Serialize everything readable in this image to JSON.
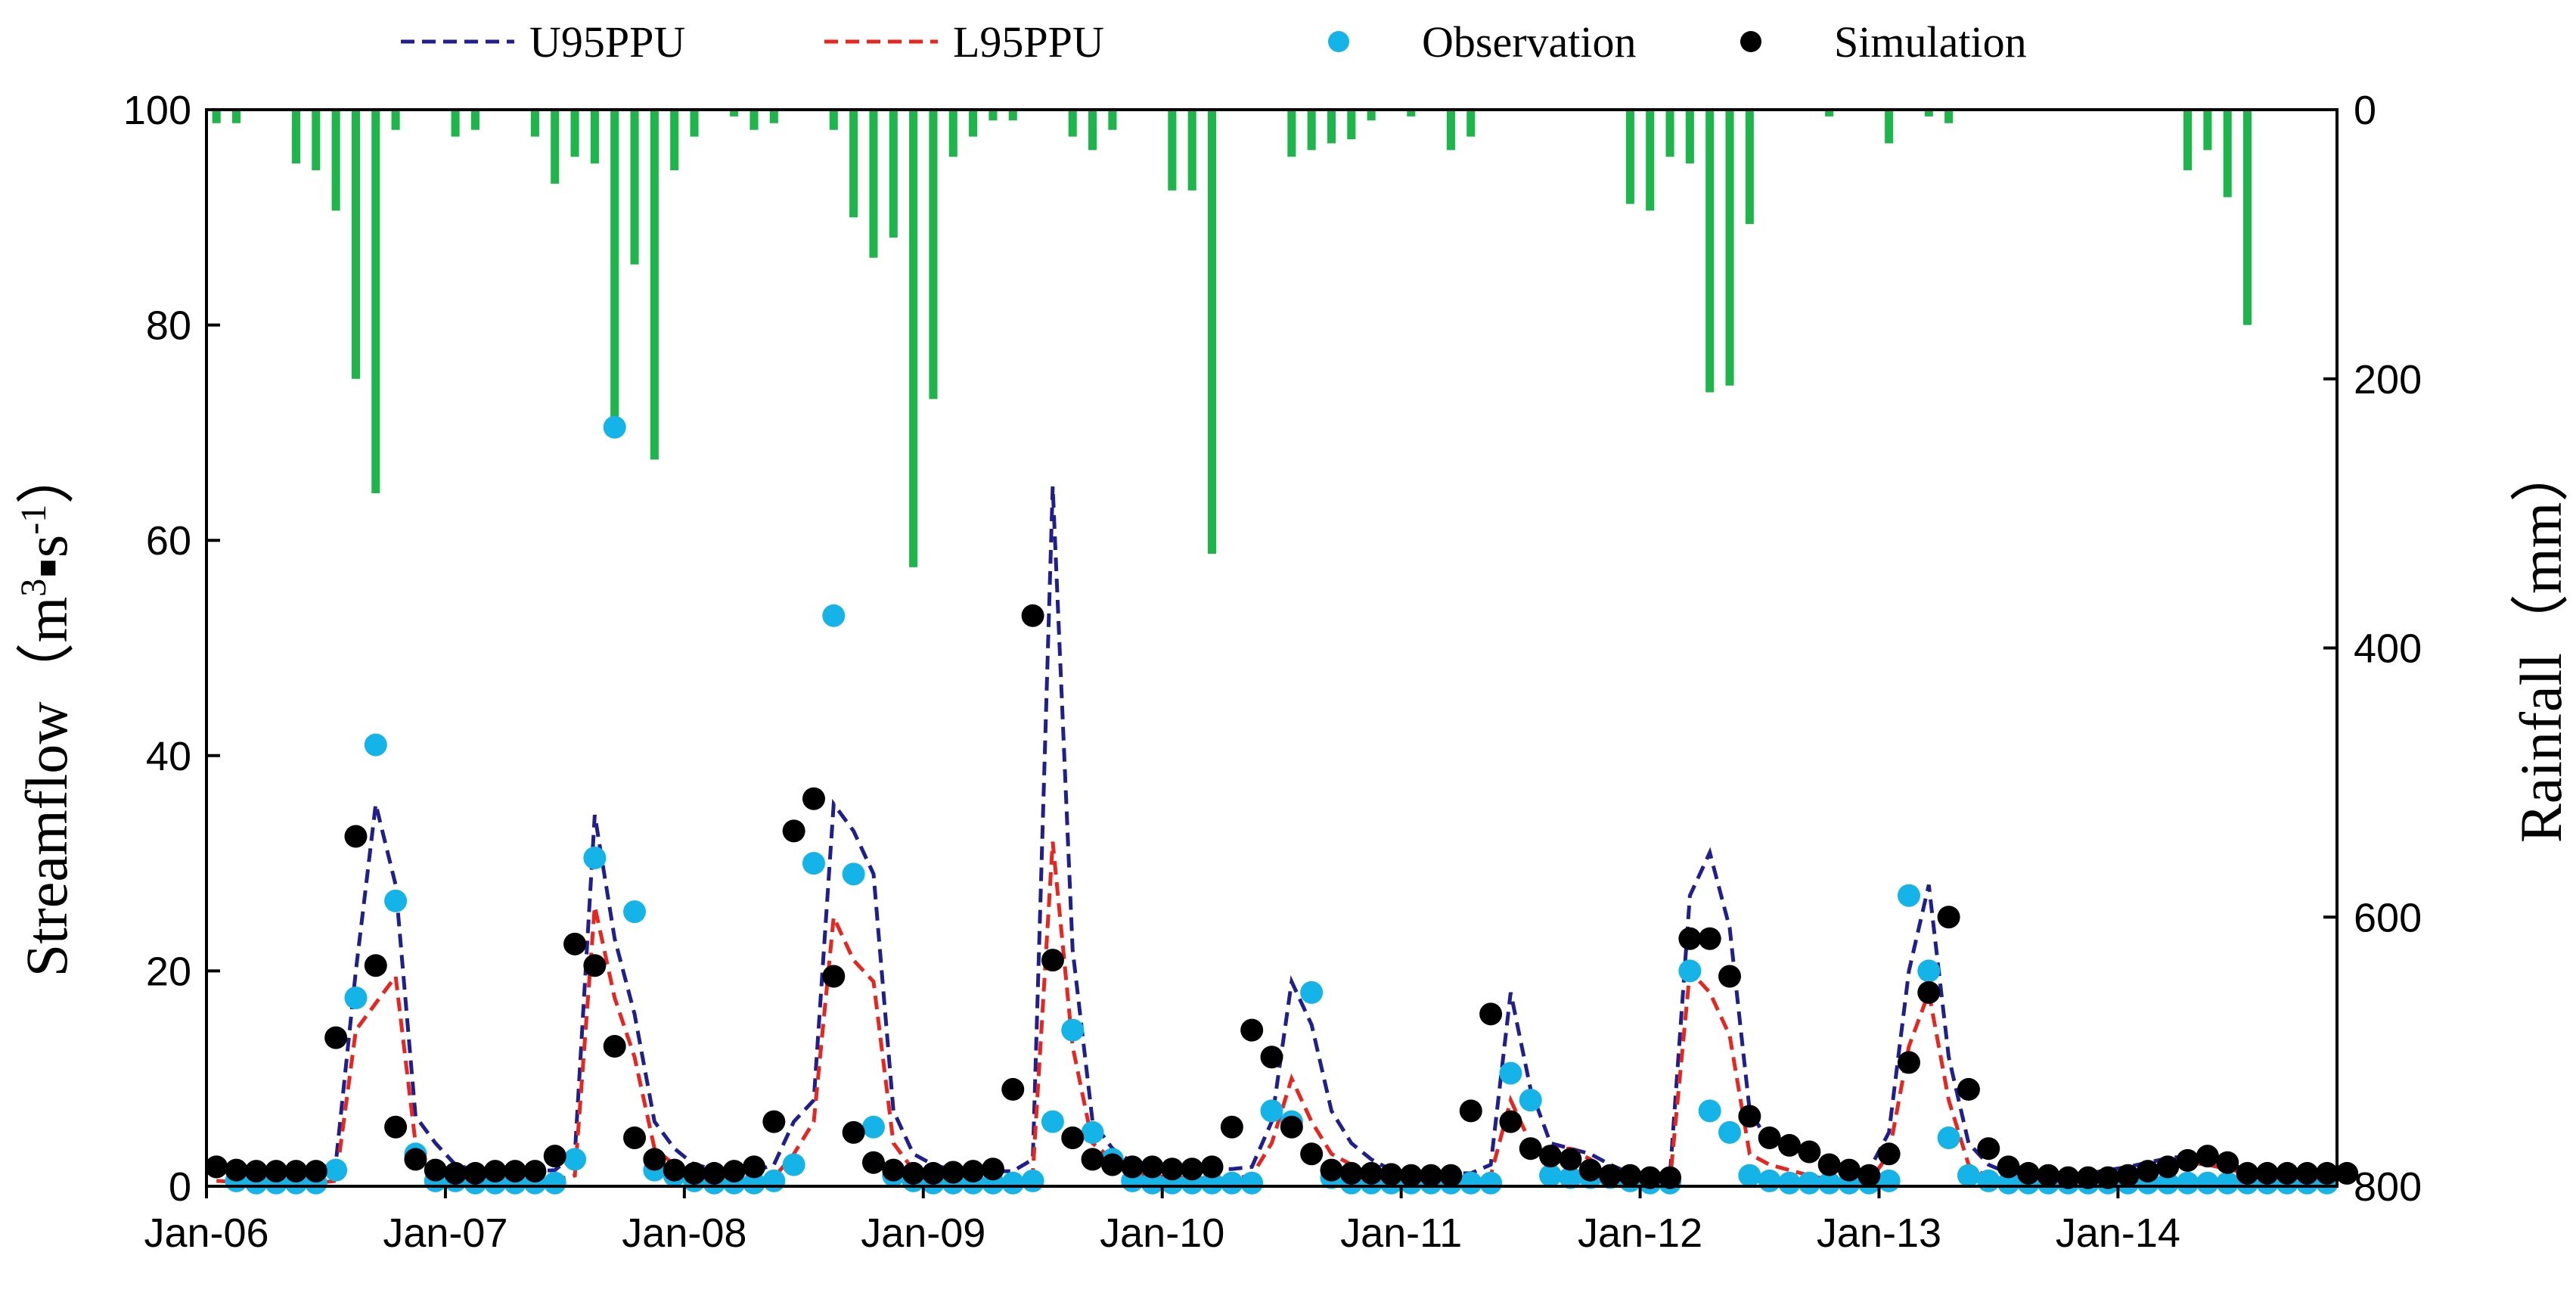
{
  "chart_data": {
    "type": "line",
    "title": "",
    "x_tick_labels": [
      "Jan-06",
      "Jan-07",
      "Jan-08",
      "Jan-09",
      "Jan-10",
      "Jan-11",
      "Jan-12",
      "Jan-13",
      "Jan-14"
    ],
    "x_range_months": [
      0,
      107
    ],
    "y_left": {
      "label_prefix": "Streamflow（m",
      "label_sup1": "3",
      "label_mid": "▪s",
      "label_sup2": "-1",
      "label_suffix": "）",
      "ylim": [
        0,
        100
      ],
      "ticks": [
        0,
        20,
        40,
        60,
        80,
        100
      ]
    },
    "y_right": {
      "label": "Rainfall（mm）",
      "ylim": [
        800,
        0
      ],
      "ticks": [
        0,
        200,
        400,
        600,
        800
      ]
    },
    "legend": [
      {
        "name": "U95PPU",
        "style": "dashed-line",
        "color": "#1f1f8f"
      },
      {
        "name": "L95PPU",
        "style": "dashed-line",
        "color": "#e8251e"
      },
      {
        "name": "Observation",
        "style": "marker",
        "color": "#14b4e8"
      },
      {
        "name": "Simulation",
        "style": "marker",
        "color": "#000000"
      }
    ],
    "colors": {
      "rainfall": "#1db64b",
      "u95": "#1f1f8f",
      "l95": "#e8251e",
      "observation": "#14b4e8",
      "simulation": "#000000"
    },
    "series": [
      {
        "name": "Rainfall",
        "axis": "right",
        "type": "bar",
        "values": [
          10,
          10,
          0,
          0,
          40,
          45,
          75,
          200,
          285,
          15,
          0,
          0,
          20,
          15,
          0,
          0,
          20,
          55,
          35,
          40,
          240,
          115,
          260,
          45,
          20,
          0,
          5,
          15,
          10,
          0,
          0,
          15,
          80,
          110,
          95,
          340,
          215,
          35,
          20,
          8,
          8,
          0,
          0,
          20,
          30,
          15,
          0,
          0,
          60,
          60,
          330,
          0,
          0,
          0,
          35,
          30,
          25,
          22,
          8,
          0,
          5,
          0,
          30,
          20,
          0,
          0,
          0,
          0,
          0,
          0,
          0,
          70,
          75,
          35,
          40,
          210,
          205,
          85,
          0,
          0,
          0,
          5,
          0,
          0,
          25,
          0,
          5,
          10,
          0,
          0,
          0,
          0,
          0,
          0,
          0,
          0,
          0,
          0,
          0,
          45,
          30,
          65,
          160,
          0,
          0,
          0,
          0,
          0,
          0,
          0,
          0,
          0,
          0,
          0,
          0,
          0,
          0,
          0,
          0,
          0,
          0,
          0,
          0,
          0,
          0,
          0,
          0,
          0,
          0,
          0,
          0,
          0,
          0,
          0,
          0,
          0
        ]
      },
      {
        "name": "U95PPU",
        "axis": "left",
        "values": [
          1.8,
          1.5,
          1.4,
          1.4,
          1.4,
          1.5,
          2.2,
          20,
          35.5,
          28,
          6.5,
          4,
          2,
          1.5,
          1.4,
          1.4,
          1.4,
          1.5,
          3,
          34.5,
          23,
          16,
          6,
          3.5,
          2,
          1.6,
          1.4,
          1.4,
          2,
          6,
          8,
          35.5,
          33,
          29,
          7,
          3,
          2,
          1.5,
          1.4,
          1.4,
          1.4,
          2.5,
          65,
          22,
          6,
          3.5,
          2.2,
          2,
          1.8,
          1.8,
          1.6,
          1.6,
          1.8,
          6,
          19,
          15,
          7,
          4,
          2.5,
          1.5,
          1.3,
          1.2,
          1.2,
          1.2,
          2,
          18,
          9,
          4,
          3.5,
          3,
          2,
          1.2,
          1,
          1,
          27,
          31,
          24,
          7,
          4,
          3.5,
          3,
          2,
          1.5,
          1.5,
          5,
          20,
          28,
          12,
          4,
          2,
          1.2,
          1.2,
          1,
          1,
          1.2,
          1.5,
          1.8,
          2.2,
          2.6,
          2.8,
          2.5,
          2,
          1.6,
          1.4,
          1.2,
          1.2,
          1.2,
          1.2
        ]
      },
      {
        "name": "L95PPU",
        "axis": "left",
        "values": [
          0.5,
          0.4,
          0.3,
          0.3,
          0.3,
          0.3,
          0.5,
          14.5,
          17,
          19.5,
          4,
          2,
          0.8,
          0.6,
          0.5,
          0.5,
          0.5,
          0.6,
          1,
          26,
          17.5,
          12,
          3.5,
          2,
          0.8,
          0.5,
          0.4,
          0.4,
          0.8,
          3,
          6,
          25,
          21,
          19,
          4,
          1.5,
          0.8,
          0.5,
          0.4,
          0.4,
          0.4,
          1.2,
          32,
          13,
          4,
          2.5,
          1.2,
          1,
          0.8,
          0.8,
          0.7,
          0.7,
          1,
          4,
          10,
          6,
          3,
          2,
          1,
          0.5,
          0.4,
          0.4,
          0.4,
          0.4,
          1,
          8,
          4,
          3.5,
          3.5,
          2.5,
          1,
          0.4,
          0.4,
          0.4,
          20,
          18,
          14,
          3,
          2,
          1.5,
          1,
          0.6,
          0.4,
          0.4,
          3,
          13,
          18,
          8,
          2,
          0.8,
          0.5,
          0.5,
          0.4,
          0.4,
          0.5,
          0.8,
          1,
          1.4,
          1.8,
          2.2,
          2,
          1.6,
          1.2,
          1,
          0.8,
          0.8,
          0.8,
          0.8
        ]
      },
      {
        "name": "Observation",
        "axis": "left",
        "type": "scatter",
        "values": [
          1.8,
          0.5,
          0.3,
          0.3,
          0.3,
          0.3,
          1.5,
          17.5,
          41,
          26.5,
          3,
          0.5,
          0.5,
          0.3,
          0.3,
          0.3,
          0.3,
          0.3,
          2.5,
          30.5,
          70.5,
          25.5,
          1.5,
          1,
          0.5,
          0.3,
          0.3,
          0.3,
          0.5,
          2,
          30,
          53,
          29,
          5.5,
          1,
          0.5,
          0.3,
          0.3,
          0.3,
          0.3,
          0.3,
          0.5,
          6,
          14.5,
          5,
          2.5,
          0.5,
          0.3,
          0.3,
          0.3,
          0.3,
          0.3,
          0.3,
          7,
          6,
          18,
          0.8,
          0.3,
          0.3,
          0.3,
          0.3,
          0.3,
          0.3,
          0.3,
          0.3,
          10.5,
          8,
          1,
          0.8,
          0.8,
          0.8,
          0.5,
          0.3,
          0.3,
          20,
          7,
          5,
          1,
          0.5,
          0.3,
          0.3,
          0.3,
          0.3,
          0.3,
          0.5,
          27,
          20,
          4.5,
          1,
          0.5,
          0.3,
          0.3,
          0.3,
          0.3,
          0.3,
          0.3,
          0.3,
          0.3,
          0.3,
          0.3,
          0.3,
          0.3,
          0.3,
          0.3,
          0.3,
          0.3,
          0.3
        ]
      },
      {
        "name": "Simulation",
        "axis": "left",
        "type": "scatter",
        "values": [
          1.8,
          1.5,
          1.4,
          1.4,
          1.4,
          1.4,
          13.8,
          32.5,
          20.5,
          5.5,
          2.5,
          1.5,
          1.2,
          1.2,
          1.4,
          1.4,
          1.4,
          2.8,
          22.5,
          20.5,
          13,
          4.5,
          2.5,
          1.5,
          1.2,
          1.2,
          1.4,
          1.8,
          6,
          33,
          36,
          19.5,
          5,
          2.2,
          1.5,
          1.2,
          1.2,
          1.3,
          1.4,
          1.6,
          9,
          53,
          21,
          4.5,
          2.5,
          2,
          1.8,
          1.8,
          1.6,
          1.6,
          1.8,
          5.5,
          14.5,
          12,
          5.5,
          3,
          1.5,
          1.2,
          1.2,
          1.1,
          1,
          1,
          1,
          7,
          16,
          6,
          3.5,
          2.8,
          2.5,
          1.5,
          1,
          1,
          0.8,
          0.8,
          23,
          23,
          19.5,
          6.5,
          4.5,
          3.8,
          3.2,
          2,
          1.5,
          1,
          3,
          11.5,
          18,
          25,
          9,
          3.5,
          1.8,
          1.2,
          1,
          0.8,
          0.8,
          0.8,
          1,
          1.4,
          1.8,
          2.4,
          2.8,
          2.2,
          1.2,
          1.2,
          1.2,
          1.2,
          1.2,
          1.2
        ]
      }
    ]
  }
}
